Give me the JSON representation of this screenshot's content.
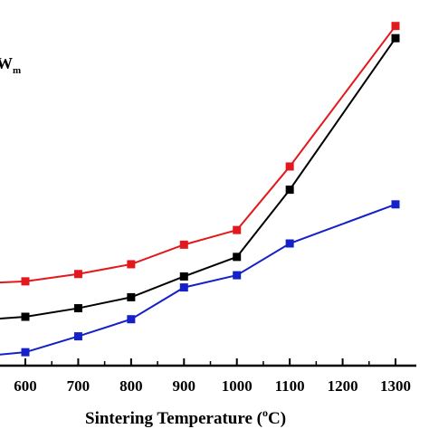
{
  "chart_data": {
    "type": "line",
    "xlabel": "Sintering Temperature (",
    "xlabel_sup": "o",
    "xlabel_end": "C)",
    "x": [
      500,
      600,
      700,
      800,
      900,
      1000,
      1100,
      1300
    ],
    "x_ticks": [
      "600",
      "700",
      "800",
      "900",
      "1000",
      "1100",
      "1200",
      "1300"
    ],
    "x_tick_values": [
      600,
      700,
      800,
      900,
      1000,
      1100,
      1200,
      1300
    ],
    "xlim": [
      550,
      1340
    ],
    "ylim": [
      0,
      1
    ],
    "legend_fragment": {
      "main": "W",
      "sub": "m"
    },
    "series": [
      {
        "color": "#e3181c",
        "values": [
          0.335,
          0.345,
          0.375,
          0.415,
          0.495,
          0.555,
          0.815,
          1.39
        ]
      },
      {
        "color": "#000000",
        "values": [
          0.185,
          0.2,
          0.235,
          0.28,
          0.365,
          0.445,
          0.72,
          1.34
        ]
      },
      {
        "color": "#1520c8",
        "values": [
          0.035,
          0.055,
          0.12,
          0.19,
          0.32,
          0.37,
          0.5,
          0.66
        ]
      }
    ]
  }
}
